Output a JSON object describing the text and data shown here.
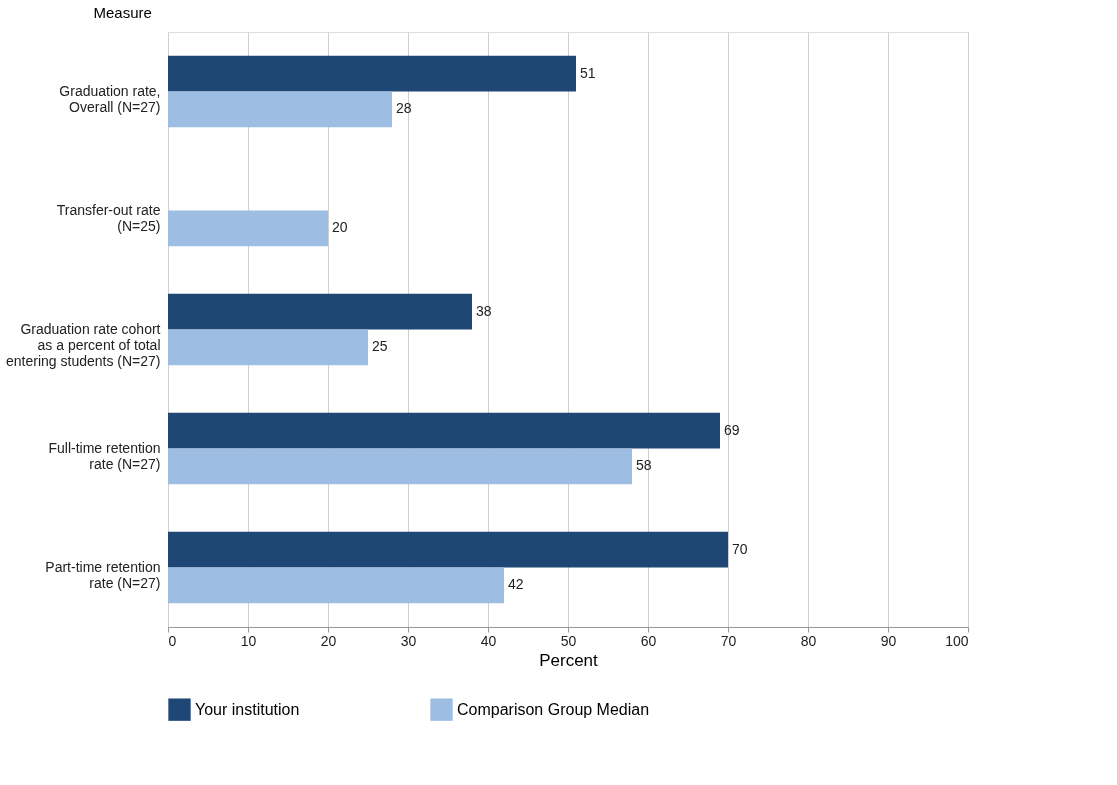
{
  "chart_data": {
    "type": "bar",
    "orientation": "horizontal",
    "ylabel": "Measure",
    "xlabel": "Percent",
    "categories": [
      "Graduation rate,\nOverall (N=27)",
      "Transfer-out rate\n(N=25)",
      "Graduation rate cohort\nas a percent of total\nentering students (N=27)",
      "Full-time retention\nrate (N=27)",
      "Part-time retention\nrate (N=27)"
    ],
    "series": [
      {
        "name": "Your institution",
        "color": "#1f4776",
        "values": [
          51,
          null,
          38,
          69,
          70
        ]
      },
      {
        "name": "Comparison Group Median",
        "color": "#9dbde3",
        "values": [
          28,
          20,
          25,
          58,
          42
        ]
      }
    ],
    "xlim": [
      0,
      100
    ],
    "xticks": [
      0,
      10,
      20,
      30,
      40,
      50,
      60,
      70,
      80,
      90,
      100
    ],
    "grid": "x",
    "legend": "bottom",
    "data_labels": true
  }
}
